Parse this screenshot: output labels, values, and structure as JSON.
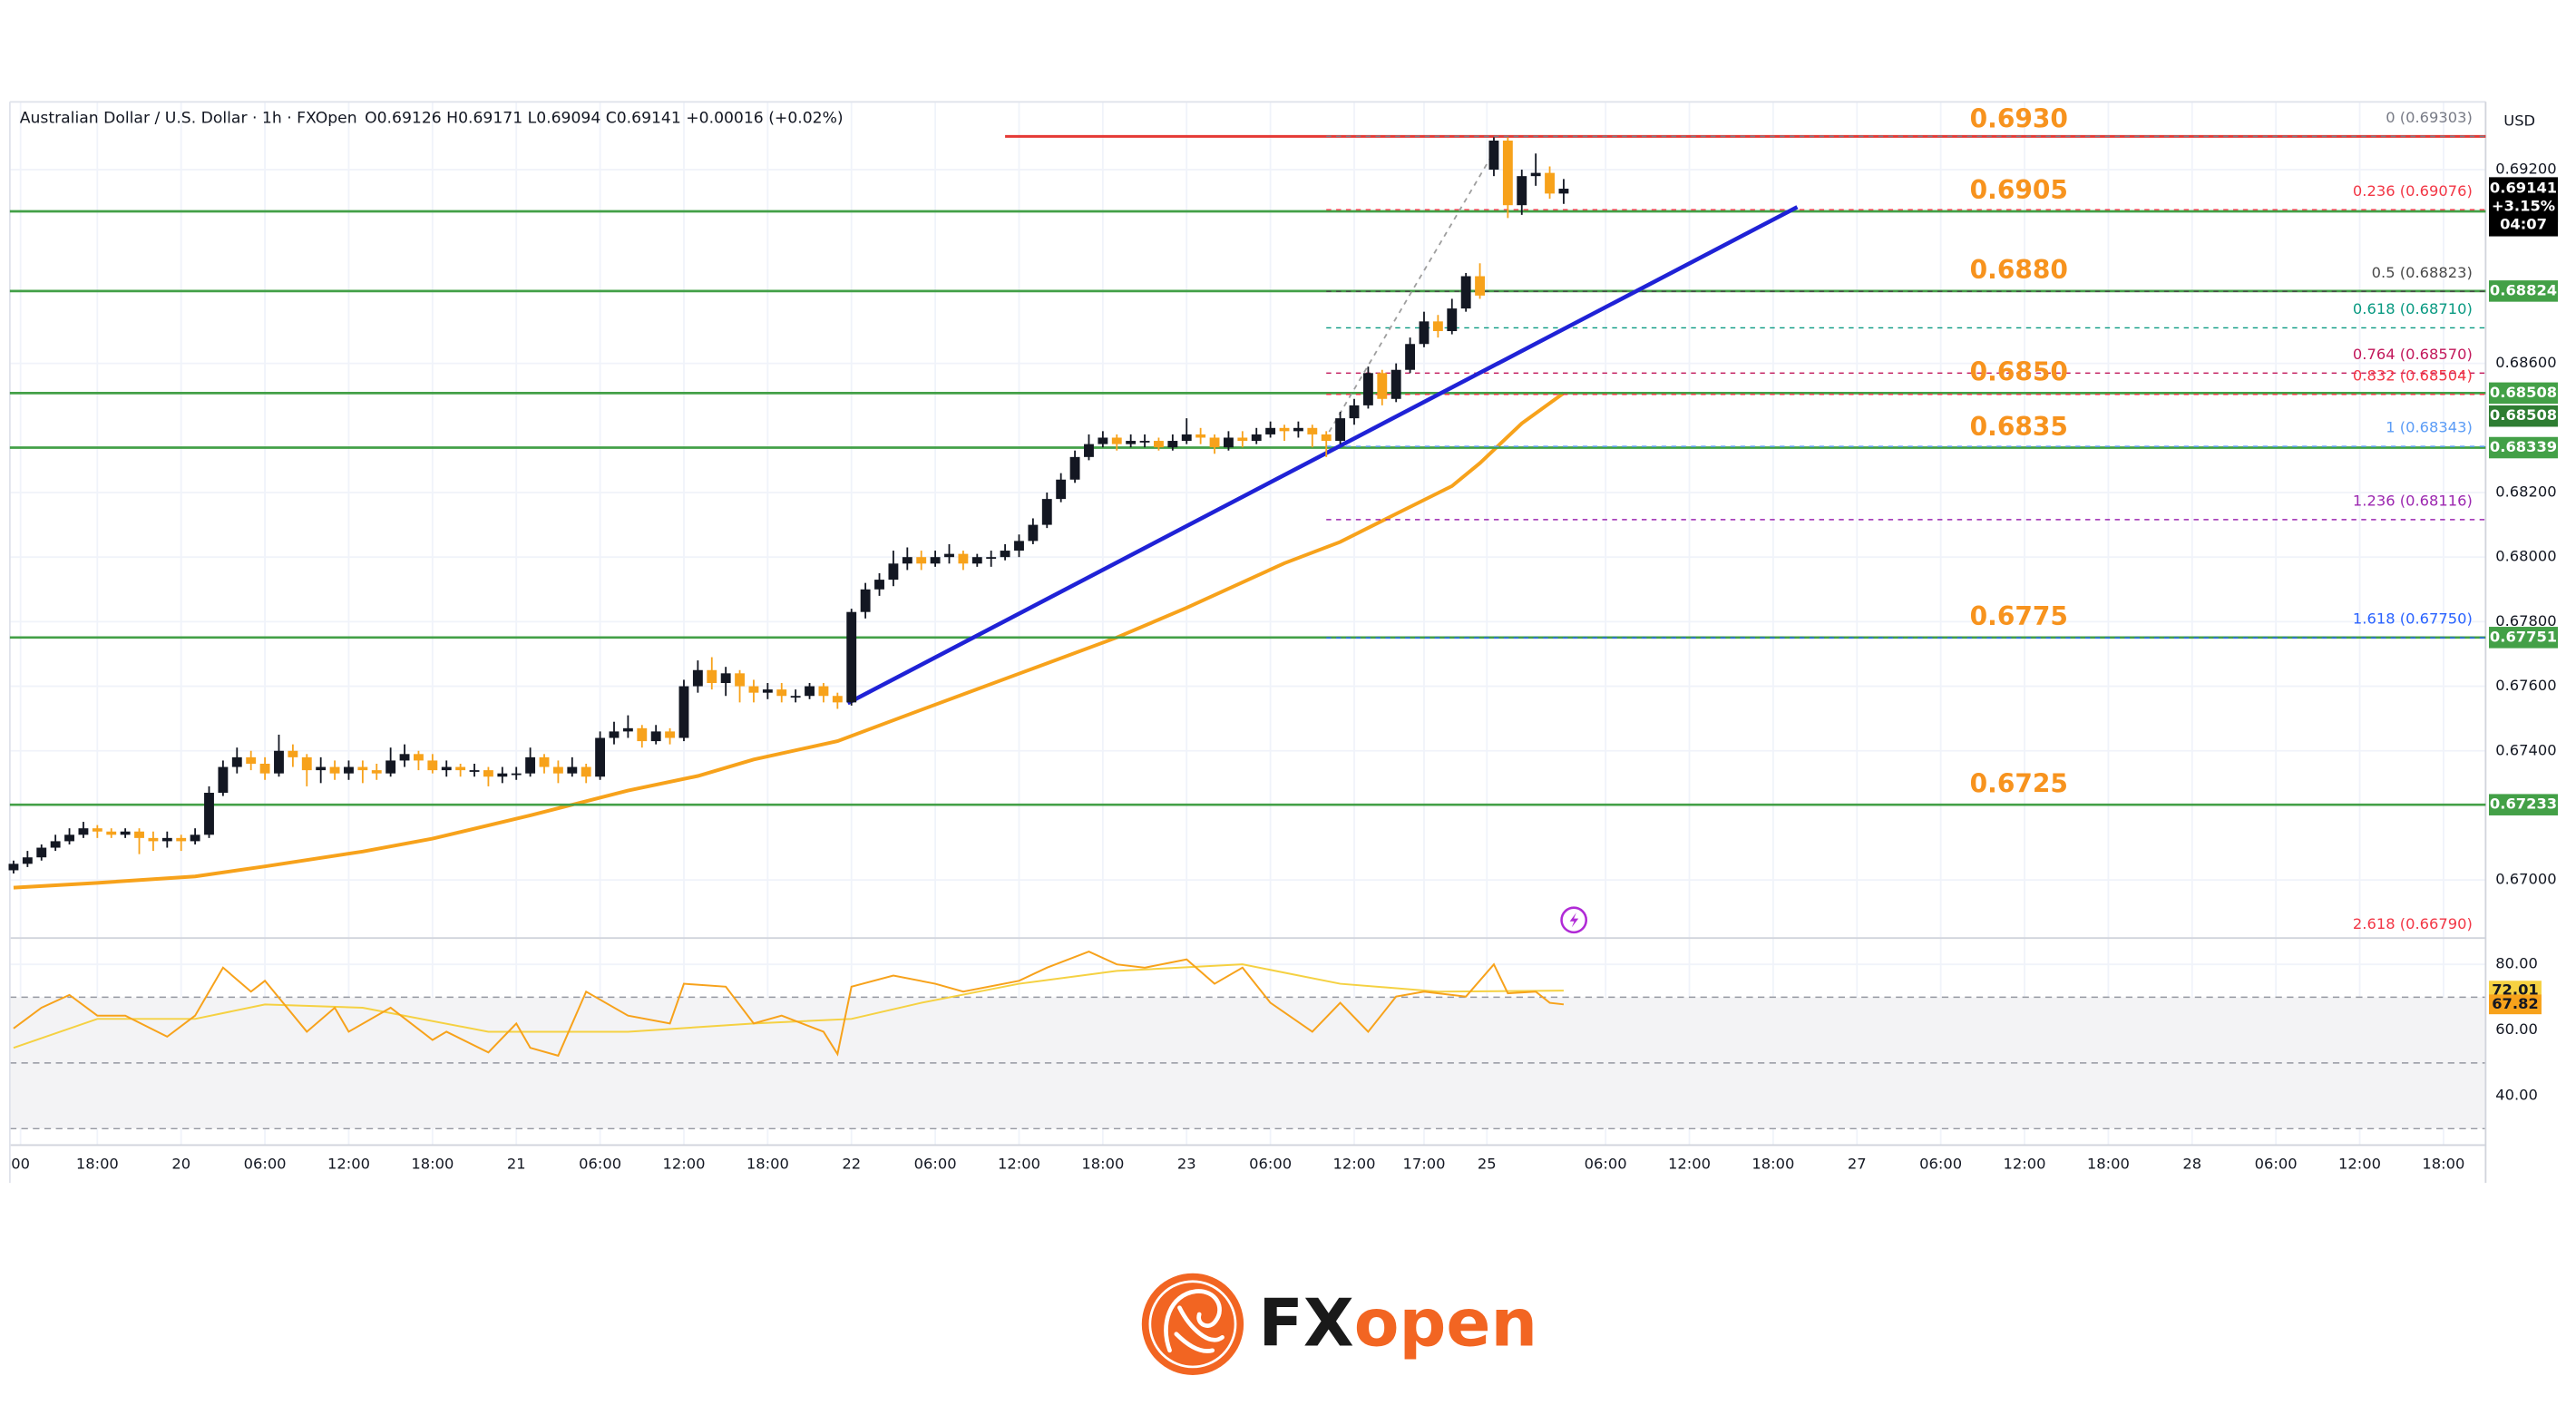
{
  "header": {
    "symbol": "Australian Dollar / U.S. Dollar · 1h · FXOpen",
    "ohlc": "O0.69126 H0.69171 L0.69094 C0.69141 +0.00016 (+0.02%)"
  },
  "logo": {
    "prefix": "FX",
    "suffix": "open"
  },
  "chart_data": {
    "type": "candlestick",
    "currency": "USD",
    "grid": true,
    "up_color": "#131722",
    "down_color": "#f7a21b",
    "xlim": [
      -0.5,
      176.9
    ],
    "xticks": [
      {
        "value": 0.5,
        "label": "00"
      },
      {
        "value": 6,
        "label": "18:00"
      },
      {
        "value": 12,
        "label": "20"
      },
      {
        "value": 18,
        "label": "06:00"
      },
      {
        "value": 24,
        "label": "12:00"
      },
      {
        "value": 30,
        "label": "18:00"
      },
      {
        "value": 36,
        "label": "21"
      },
      {
        "value": 42,
        "label": "06:00"
      },
      {
        "value": 48,
        "label": "12:00"
      },
      {
        "value": 54,
        "label": "18:00"
      },
      {
        "value": 60,
        "label": "22"
      },
      {
        "value": 66,
        "label": "06:00"
      },
      {
        "value": 72,
        "label": "12:00"
      },
      {
        "value": 78,
        "label": "18:00"
      },
      {
        "value": 84,
        "label": "23"
      },
      {
        "value": 90,
        "label": "06:00"
      },
      {
        "value": 96,
        "label": "12:00"
      },
      {
        "value": 101,
        "label": "17:00"
      },
      {
        "value": 105.5,
        "label": "25"
      },
      {
        "value": 114,
        "label": "06:00"
      },
      {
        "value": 120,
        "label": "12:00"
      },
      {
        "value": 126,
        "label": "18:00"
      },
      {
        "value": 132,
        "label": "27"
      },
      {
        "value": 138,
        "label": "06:00"
      },
      {
        "value": 144,
        "label": "12:00"
      },
      {
        "value": 150,
        "label": "18:00"
      },
      {
        "value": 156,
        "label": "28"
      },
      {
        "value": 162,
        "label": "06:00"
      },
      {
        "value": 168,
        "label": "12:00"
      },
      {
        "value": 174,
        "label": "18:00"
      }
    ],
    "ylim": [
      0.6682,
      0.6941
    ],
    "yticks": [
      {
        "value": 0.692,
        "label": "0.69200"
      },
      {
        "value": 0.686,
        "label": "0.68600"
      },
      {
        "value": 0.682,
        "label": "0.68200"
      },
      {
        "value": 0.68,
        "label": "0.68000"
      },
      {
        "value": 0.678,
        "label": "0.67800"
      },
      {
        "value": 0.676,
        "label": "0.67600"
      },
      {
        "value": 0.674,
        "label": "0.67400"
      },
      {
        "value": 0.67,
        "label": "0.67000"
      }
    ],
    "candles": {
      "open": [
        0.6703,
        0.6705,
        0.6707,
        0.671,
        0.6712,
        0.6714,
        0.6716,
        0.6715,
        0.6714,
        0.6715,
        0.6713,
        0.6712,
        0.6713,
        0.6712,
        0.6714,
        0.6727,
        0.6735,
        0.6738,
        0.6736,
        0.6733,
        0.674,
        0.6738,
        0.6734,
        0.6735,
        0.6733,
        0.6735,
        0.6734,
        0.6733,
        0.6737,
        0.6739,
        0.6737,
        0.6734,
        0.6735,
        0.6734,
        0.6734,
        0.6732,
        0.6733,
        0.6733,
        0.6738,
        0.6735,
        0.6733,
        0.6735,
        0.6732,
        0.6744,
        0.6746,
        0.6747,
        0.6743,
        0.6746,
        0.6744,
        0.676,
        0.6765,
        0.6761,
        0.6764,
        0.676,
        0.6758,
        0.6759,
        0.6757,
        0.6757,
        0.676,
        0.6757,
        0.6755,
        0.6783,
        0.679,
        0.6793,
        0.6798,
        0.68,
        0.6798,
        0.68,
        0.6801,
        0.6798,
        0.68,
        0.68,
        0.6802,
        0.6805,
        0.681,
        0.6818,
        0.6824,
        0.6831,
        0.6835,
        0.6837,
        0.6835,
        0.6836,
        0.6836,
        0.6834,
        0.6836,
        0.6838,
        0.6837,
        0.6834,
        0.6837,
        0.6836,
        0.6838,
        0.684,
        0.6839,
        0.684,
        0.6838,
        0.6836,
        0.6843,
        0.6847,
        0.6857,
        0.6849,
        0.6858,
        0.6866,
        0.6873,
        0.687,
        0.6877,
        0.6887,
        0.692,
        0.6929,
        0.6909,
        0.6918,
        0.6919,
        0.69126
      ],
      "high": [
        0.6706,
        0.6709,
        0.6711,
        0.6714,
        0.6716,
        0.6718,
        0.6717,
        0.6716,
        0.6716,
        0.6716,
        0.6715,
        0.6715,
        0.6714,
        0.6716,
        0.6729,
        0.6737,
        0.6741,
        0.674,
        0.6738,
        0.6745,
        0.6742,
        0.6739,
        0.6738,
        0.6737,
        0.6737,
        0.6737,
        0.6736,
        0.6741,
        0.6742,
        0.674,
        0.6739,
        0.6737,
        0.6736,
        0.6736,
        0.6735,
        0.6735,
        0.6735,
        0.6741,
        0.6739,
        0.6737,
        0.6738,
        0.6736,
        0.6746,
        0.6749,
        0.6751,
        0.6748,
        0.6748,
        0.6747,
        0.6762,
        0.6768,
        0.6769,
        0.6766,
        0.6765,
        0.6762,
        0.6761,
        0.6761,
        0.6759,
        0.6761,
        0.6761,
        0.6758,
        0.6784,
        0.6792,
        0.6795,
        0.6802,
        0.6803,
        0.6802,
        0.6802,
        0.6804,
        0.6802,
        0.6801,
        0.6802,
        0.6804,
        0.6807,
        0.6812,
        0.682,
        0.6826,
        0.6833,
        0.6838,
        0.6839,
        0.6838,
        0.6838,
        0.6838,
        0.6837,
        0.6838,
        0.6843,
        0.684,
        0.6838,
        0.6839,
        0.6839,
        0.684,
        0.6842,
        0.6841,
        0.6842,
        0.6841,
        0.6839,
        0.6845,
        0.6849,
        0.6859,
        0.6858,
        0.686,
        0.6868,
        0.6876,
        0.6875,
        0.688,
        0.6888,
        0.6891,
        0.693,
        0.693,
        0.692,
        0.6925,
        0.6921,
        0.69171
      ],
      "low": [
        0.6702,
        0.6704,
        0.6706,
        0.6709,
        0.6711,
        0.6713,
        0.6713,
        0.6713,
        0.6713,
        0.6708,
        0.6709,
        0.671,
        0.6709,
        0.6711,
        0.6713,
        0.6726,
        0.6733,
        0.6734,
        0.6731,
        0.6732,
        0.6735,
        0.6729,
        0.673,
        0.6731,
        0.6731,
        0.673,
        0.6731,
        0.6732,
        0.6735,
        0.6734,
        0.6733,
        0.6732,
        0.6732,
        0.6732,
        0.6729,
        0.673,
        0.6731,
        0.6732,
        0.6733,
        0.673,
        0.6732,
        0.673,
        0.6731,
        0.6742,
        0.6744,
        0.6741,
        0.6742,
        0.6742,
        0.6743,
        0.6758,
        0.6759,
        0.6757,
        0.6755,
        0.6755,
        0.6756,
        0.6755,
        0.6755,
        0.6756,
        0.6755,
        0.6753,
        0.6754,
        0.6781,
        0.6788,
        0.6791,
        0.6796,
        0.6796,
        0.6797,
        0.6798,
        0.6796,
        0.6797,
        0.6797,
        0.6799,
        0.68,
        0.6804,
        0.6809,
        0.6817,
        0.6823,
        0.683,
        0.6834,
        0.6833,
        0.6834,
        0.6834,
        0.6833,
        0.6833,
        0.6835,
        0.6835,
        0.6832,
        0.6833,
        0.6834,
        0.6835,
        0.6837,
        0.6836,
        0.6837,
        0.6834,
        0.6831,
        0.6835,
        0.6841,
        0.6846,
        0.6847,
        0.6848,
        0.6857,
        0.6865,
        0.6868,
        0.6869,
        0.6876,
        0.688,
        0.6918,
        0.6905,
        0.6906,
        0.6915,
        0.6911,
        0.69094
      ],
      "close": [
        0.6705,
        0.6707,
        0.671,
        0.6712,
        0.6714,
        0.6716,
        0.6715,
        0.6714,
        0.6715,
        0.6713,
        0.6712,
        0.6713,
        0.6712,
        0.6714,
        0.6727,
        0.6735,
        0.6738,
        0.6736,
        0.6733,
        0.674,
        0.6738,
        0.6734,
        0.6735,
        0.6733,
        0.6735,
        0.6734,
        0.6733,
        0.6737,
        0.6739,
        0.6737,
        0.6734,
        0.6735,
        0.6734,
        0.6734,
        0.6732,
        0.6733,
        0.6733,
        0.6738,
        0.6735,
        0.6733,
        0.6735,
        0.6732,
        0.6744,
        0.6746,
        0.6747,
        0.6743,
        0.6746,
        0.6744,
        0.676,
        0.6765,
        0.6761,
        0.6764,
        0.676,
        0.6758,
        0.6759,
        0.6757,
        0.6757,
        0.676,
        0.6757,
        0.6755,
        0.6783,
        0.679,
        0.6793,
        0.6798,
        0.68,
        0.6798,
        0.68,
        0.6801,
        0.6798,
        0.68,
        0.68,
        0.6802,
        0.6805,
        0.681,
        0.6818,
        0.6824,
        0.6831,
        0.6835,
        0.6837,
        0.6835,
        0.6836,
        0.6836,
        0.6834,
        0.6836,
        0.6838,
        0.6837,
        0.6834,
        0.6837,
        0.6836,
        0.6838,
        0.684,
        0.6839,
        0.684,
        0.6838,
        0.6836,
        0.6843,
        0.6847,
        0.6857,
        0.6849,
        0.6858,
        0.6866,
        0.6873,
        0.687,
        0.6877,
        0.6887,
        0.6881,
        0.6929,
        0.6909,
        0.6918,
        0.6919,
        0.69126,
        0.69141
      ]
    },
    "ma": {
      "color": "#f7a21b",
      "x": [
        0,
        6,
        13,
        18,
        25,
        30,
        37,
        44,
        49,
        53,
        59,
        65,
        72,
        79,
        84,
        91,
        95,
        99,
        103,
        105,
        108,
        111
      ],
      "values": [
        0.66976,
        0.66991,
        0.67011,
        0.67042,
        0.67088,
        0.67128,
        0.672,
        0.67277,
        0.67322,
        0.67373,
        0.6743,
        0.67527,
        0.67639,
        0.67751,
        0.67843,
        0.67981,
        0.68047,
        0.68134,
        0.6822,
        0.68291,
        0.68414,
        0.68508
      ],
      "tag_color": "#2e7d32"
    },
    "resistance": {
      "value": 0.69303,
      "label": "0.6930",
      "color": "#e53935",
      "start": 71
    },
    "levels": [
      {
        "value": 0.69071,
        "label": "0.6905",
        "color": "#43a047"
      },
      {
        "value": 0.68824,
        "label": "0.6880",
        "color": "#43a047"
      },
      {
        "value": 0.68508,
        "label": "0.6850",
        "color": "#43a047"
      },
      {
        "value": 0.68339,
        "label": "0.6835",
        "color": "#43a047"
      },
      {
        "value": 0.67751,
        "label": "0.6775",
        "color": "#43a047"
      },
      {
        "value": 0.67233,
        "label": "0.6725",
        "color": "#43a047"
      }
    ],
    "price_badge": {
      "change": "+3.15%",
      "countdown": "04:07",
      "color": "#000000"
    },
    "fib_start": 94,
    "fib": [
      {
        "value": 0.69303,
        "label": "0 (0.69303)",
        "color": "#787b86"
      },
      {
        "value": 0.69076,
        "label": "0.236 (0.69076)",
        "color": "#f23645"
      },
      {
        "value": 0.68823,
        "label": "0.5 (0.68823)",
        "color": "#4a4a4a"
      },
      {
        "value": 0.6871,
        "label": "0.618 (0.68710)",
        "color": "#089981"
      },
      {
        "value": 0.6857,
        "label": "0.764 (0.68570)",
        "color": "#c2185b"
      },
      {
        "value": 0.68504,
        "label": "0.832 (0.68504)",
        "color": "#f23645"
      },
      {
        "value": 0.68343,
        "label": "1 (0.68343)",
        "color": "#5b9cf6"
      },
      {
        "value": 0.68116,
        "label": "1.236 (0.68116)",
        "color": "#9c27b0"
      },
      {
        "value": 0.6775,
        "label": "1.618 (0.67750)",
        "color": "#2962ff"
      },
      {
        "value": 0.6679,
        "label": "2.618 (0.66790)",
        "color": "#f23645"
      }
    ],
    "rsi": {
      "ylim": [
        25,
        88
      ],
      "yticks": [
        {
          "value": 80,
          "label": "80.00"
        },
        {
          "value": 60,
          "label": "60.00"
        },
        {
          "value": 40,
          "label": "40.00"
        }
      ],
      "levels": [
        70,
        50,
        30
      ],
      "line": {
        "color": "#f7a21b",
        "x": [
          0,
          2,
          4,
          6,
          8,
          11,
          13,
          15,
          17,
          18,
          21,
          23,
          24,
          27,
          30,
          31,
          34,
          36,
          37,
          39,
          41,
          44,
          47,
          48,
          51,
          53,
          55,
          58,
          59,
          60,
          63,
          66,
          68,
          72,
          74,
          77,
          79,
          81,
          84,
          86,
          88,
          90,
          93,
          95,
          97,
          99,
          101,
          104,
          106,
          107,
          109,
          110,
          111
        ],
        "values": [
          60.5,
          66.8,
          70.7,
          64.4,
          64.4,
          58,
          64.4,
          79,
          71.7,
          75,
          59.5,
          66.8,
          59.5,
          66.8,
          57,
          59.5,
          53.2,
          62,
          54.6,
          52.2,
          71.7,
          64.4,
          62,
          74.1,
          73.2,
          62,
          64.4,
          59.5,
          52.7,
          73.2,
          76.6,
          74.1,
          71.7,
          75,
          79,
          83.9,
          80,
          79,
          81.5,
          74.1,
          79,
          68.3,
          59.5,
          68.3,
          59.5,
          70.2,
          71.7,
          70.2,
          80,
          71.2,
          71.7,
          68.3,
          67.82
        ]
      },
      "ma": {
        "color": "#f5d142",
        "x": [
          0,
          6,
          13,
          18,
          25,
          34,
          44,
          53,
          60,
          65,
          72,
          79,
          88,
          95,
          102,
          111
        ],
        "values": [
          54.6,
          63.4,
          63.4,
          67.8,
          66.8,
          59.5,
          59.5,
          62,
          63.4,
          68.3,
          74.1,
          78,
          80,
          74.1,
          71.7,
          72.01
        ]
      }
    }
  }
}
